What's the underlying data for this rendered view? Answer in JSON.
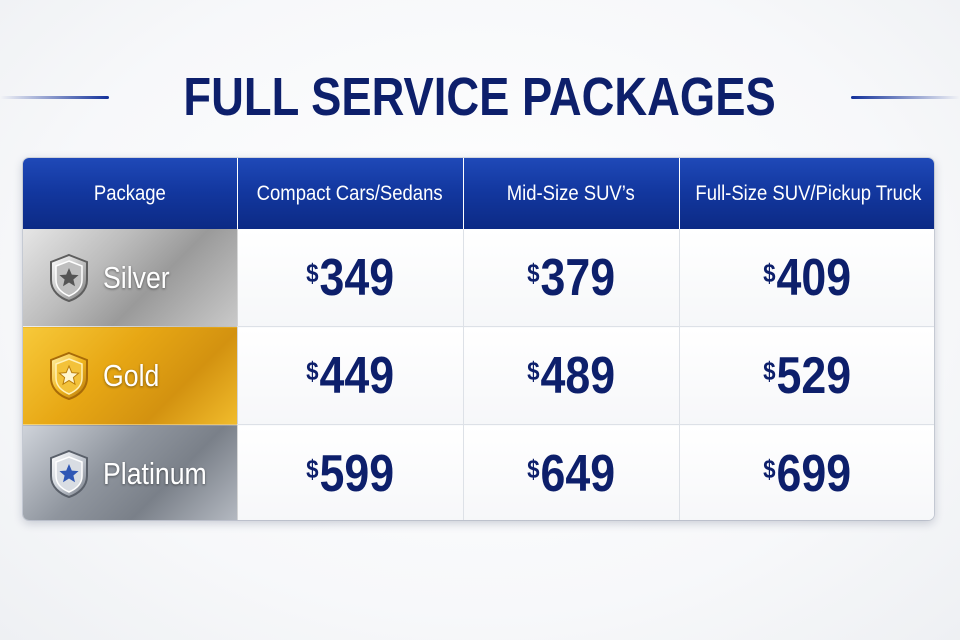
{
  "title": "FULL SERVICE PACKAGES",
  "table": {
    "headers": [
      "Package",
      "Compact Cars/Sedans",
      "Mid-Size SUV’s",
      "Full-Size SUV/Pickup Truck"
    ],
    "rows": [
      {
        "package": "Silver",
        "badge_icon": "silver-star-shield-icon",
        "badge_color": "#8e8e8e",
        "currency": "$",
        "prices": [
          "349",
          "379",
          "409"
        ]
      },
      {
        "package": "Gold",
        "badge_icon": "gold-star-shield-icon",
        "badge_color": "#e3a012",
        "currency": "$",
        "prices": [
          "449",
          "489",
          "529"
        ]
      },
      {
        "package": "Platinum",
        "badge_icon": "platinum-star-shield-icon",
        "badge_color": "#2f57b5",
        "currency": "$",
        "prices": [
          "599",
          "649",
          "699"
        ]
      }
    ]
  },
  "colors": {
    "title": "#0d1f6b",
    "header_bg": "#1338a0",
    "price_text": "#0d1f6b"
  }
}
